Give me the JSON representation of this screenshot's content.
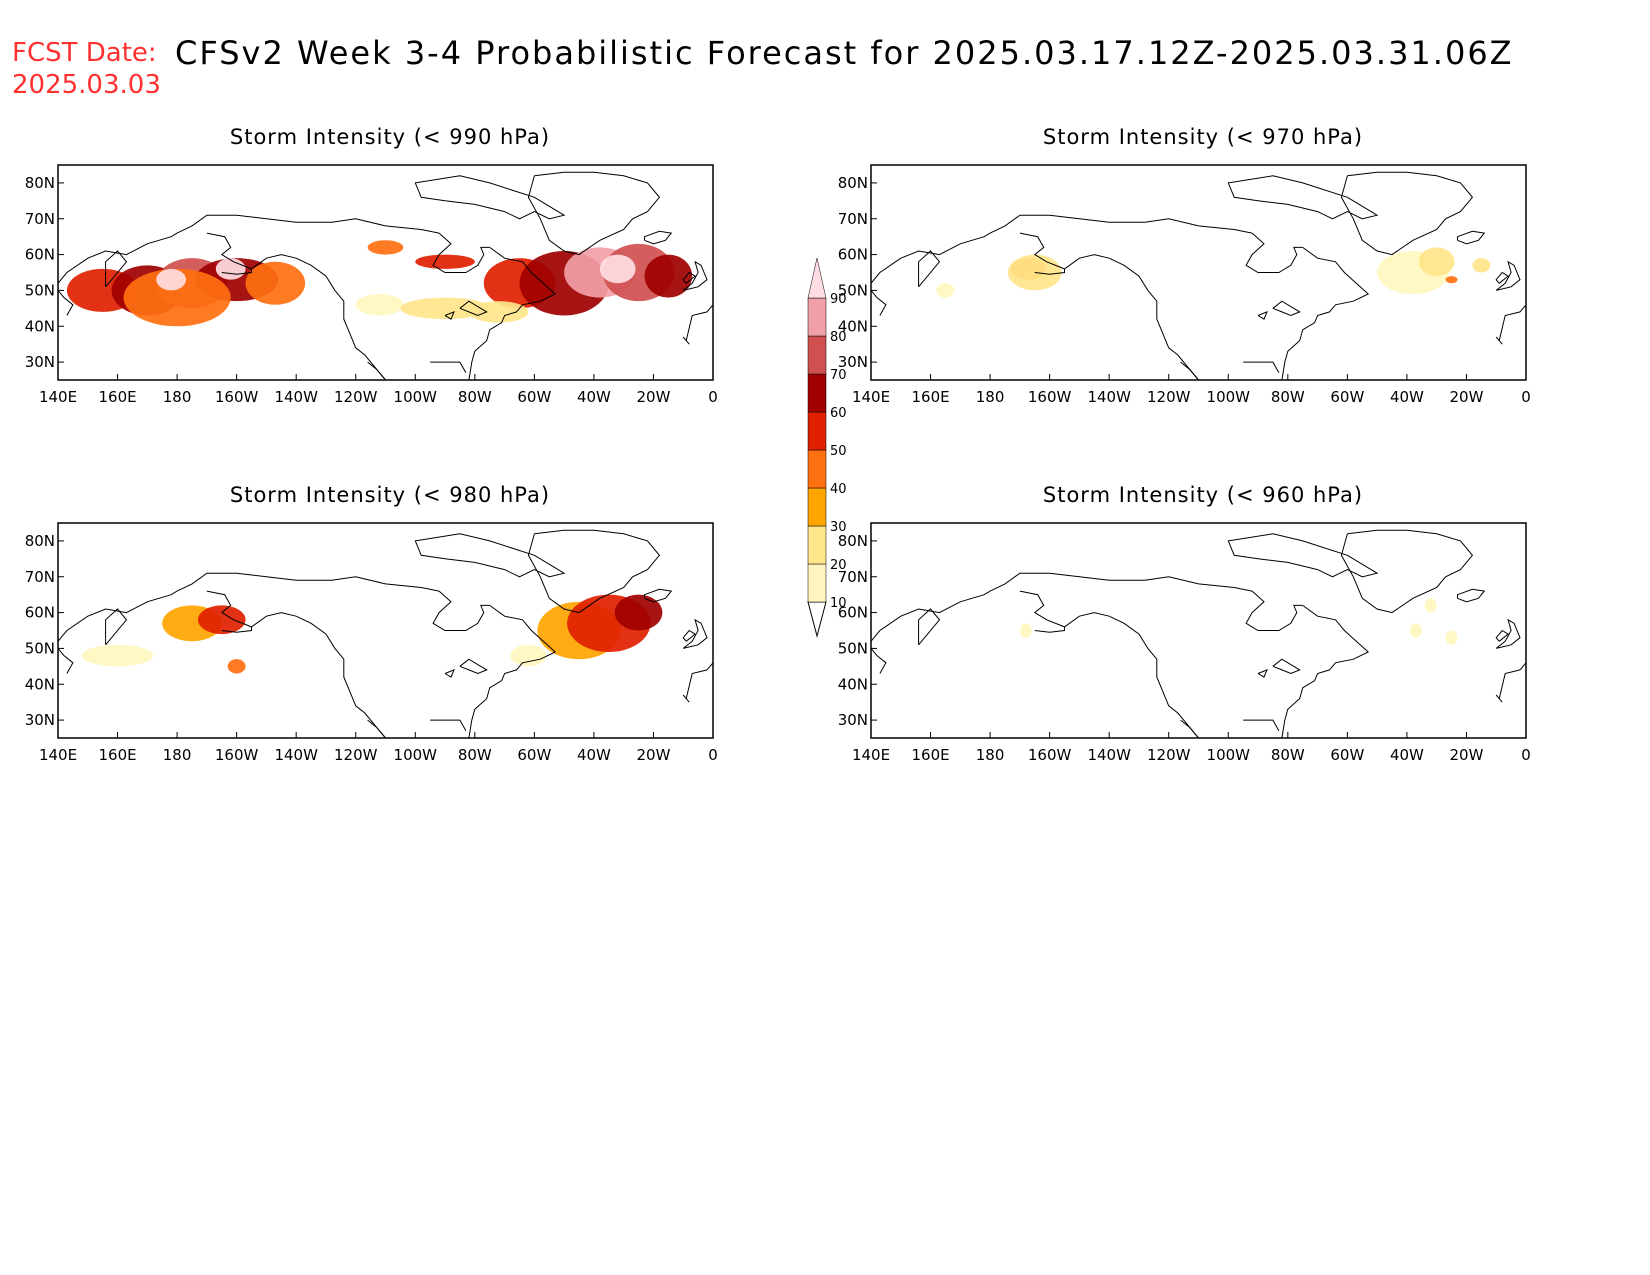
{
  "header": {
    "fcst_label": "FCST Date:",
    "fcst_date": "2025.03.03",
    "title": "CFSv2 Week 3-4 Probabilistic Forecast for 2025.03.17.12Z-2025.03.31.06Z"
  },
  "axes": {
    "x_ticks": [
      "140E",
      "160E",
      "180",
      "160W",
      "140W",
      "120W",
      "100W",
      "80W",
      "60W",
      "40W",
      "20W",
      "0"
    ],
    "y_ticks": [
      "80N",
      "70N",
      "60N",
      "50N",
      "40N",
      "30N"
    ]
  },
  "colorbar": {
    "levels": [
      "10",
      "20",
      "30",
      "40",
      "50",
      "60",
      "70",
      "80",
      "90"
    ],
    "colors": [
      "#fff6bf",
      "#ffe58a",
      "#ffa500",
      "#ff7010",
      "#e02000",
      "#a00000",
      "#d05050",
      "#f2a0a8",
      "#ffdde2"
    ]
  },
  "panels": [
    {
      "title": "Storm Intensity (< 990 hPa)",
      "blobs": [
        {
          "lon": 155,
          "lat": 50,
          "rx": 12,
          "ry": 6,
          "level": 4
        },
        {
          "lon": 170,
          "lat": 50,
          "rx": 12,
          "ry": 7,
          "level": 5
        },
        {
          "lon": 185,
          "lat": 52,
          "rx": 12,
          "ry": 7,
          "level": 6
        },
        {
          "lon": 200,
          "lat": 53,
          "rx": 14,
          "ry": 6,
          "level": 5
        },
        {
          "lon": 180,
          "lat": 48,
          "rx": 18,
          "ry": 8,
          "level": 3
        },
        {
          "lon": 178,
          "lat": 53,
          "rx": 5,
          "ry": 3,
          "level": 8
        },
        {
          "lon": 198,
          "lat": 56,
          "rx": 5,
          "ry": 3,
          "level": 8
        },
        {
          "lon": 213,
          "lat": 52,
          "rx": 10,
          "ry": 6,
          "level": 3
        },
        {
          "lon": 248,
          "lat": 46,
          "rx": 8,
          "ry": 3,
          "level": 0
        },
        {
          "lon": 270,
          "lat": 45,
          "rx": 15,
          "ry": 3,
          "level": 1
        },
        {
          "lon": 250,
          "lat": 62,
          "rx": 6,
          "ry": 2,
          "level": 3
        },
        {
          "lon": 270,
          "lat": 58,
          "rx": 10,
          "ry": 2,
          "level": 4
        },
        {
          "lon": 295,
          "lat": 52,
          "rx": 12,
          "ry": 7,
          "level": 4
        },
        {
          "lon": 310,
          "lat": 52,
          "rx": 15,
          "ry": 9,
          "level": 5
        },
        {
          "lon": 322,
          "lat": 55,
          "rx": 12,
          "ry": 7,
          "level": 7
        },
        {
          "lon": 335,
          "lat": 55,
          "rx": 12,
          "ry": 8,
          "level": 6
        },
        {
          "lon": 328,
          "lat": 56,
          "rx": 6,
          "ry": 4,
          "level": 8
        },
        {
          "lon": 345,
          "lat": 54,
          "rx": 8,
          "ry": 6,
          "level": 5
        },
        {
          "lon": 288,
          "lat": 44,
          "rx": 10,
          "ry": 3,
          "level": 1
        }
      ]
    },
    {
      "title": "Storm Intensity (< 970 hPa)",
      "blobs": [
        {
          "lon": 193,
          "lat": 56,
          "rx": 6,
          "ry": 3,
          "level": 3
        },
        {
          "lon": 195,
          "lat": 55,
          "rx": 9,
          "ry": 5,
          "level": 1
        },
        {
          "lon": 165,
          "lat": 50,
          "rx": 3,
          "ry": 2,
          "level": 0
        },
        {
          "lon": 322,
          "lat": 55,
          "rx": 12,
          "ry": 6,
          "level": 0
        },
        {
          "lon": 330,
          "lat": 58,
          "rx": 6,
          "ry": 4,
          "level": 1
        },
        {
          "lon": 335,
          "lat": 53,
          "rx": 2,
          "ry": 1,
          "level": 3
        },
        {
          "lon": 345,
          "lat": 57,
          "rx": 3,
          "ry": 2,
          "level": 1
        }
      ]
    },
    {
      "title": "Storm Intensity (< 980 hPa)",
      "blobs": [
        {
          "lon": 185,
          "lat": 57,
          "rx": 10,
          "ry": 5,
          "level": 2
        },
        {
          "lon": 195,
          "lat": 58,
          "rx": 8,
          "ry": 4,
          "level": 4
        },
        {
          "lon": 160,
          "lat": 48,
          "rx": 12,
          "ry": 3,
          "level": 0
        },
        {
          "lon": 200,
          "lat": 45,
          "rx": 3,
          "ry": 2,
          "level": 3
        },
        {
          "lon": 315,
          "lat": 55,
          "rx": 14,
          "ry": 8,
          "level": 2
        },
        {
          "lon": 325,
          "lat": 57,
          "rx": 14,
          "ry": 8,
          "level": 4
        },
        {
          "lon": 335,
          "lat": 60,
          "rx": 8,
          "ry": 5,
          "level": 5
        },
        {
          "lon": 298,
          "lat": 48,
          "rx": 6,
          "ry": 3,
          "level": 0
        }
      ]
    },
    {
      "title": "Storm Intensity (< 960 hPa)",
      "blobs": [
        {
          "lon": 192,
          "lat": 55,
          "rx": 2,
          "ry": 2,
          "level": 0
        },
        {
          "lon": 328,
          "lat": 62,
          "rx": 2,
          "ry": 2,
          "level": 0
        },
        {
          "lon": 323,
          "lat": 55,
          "rx": 2,
          "ry": 2,
          "level": 0
        },
        {
          "lon": 335,
          "lat": 53,
          "rx": 2,
          "ry": 2,
          "level": 0
        }
      ]
    }
  ]
}
